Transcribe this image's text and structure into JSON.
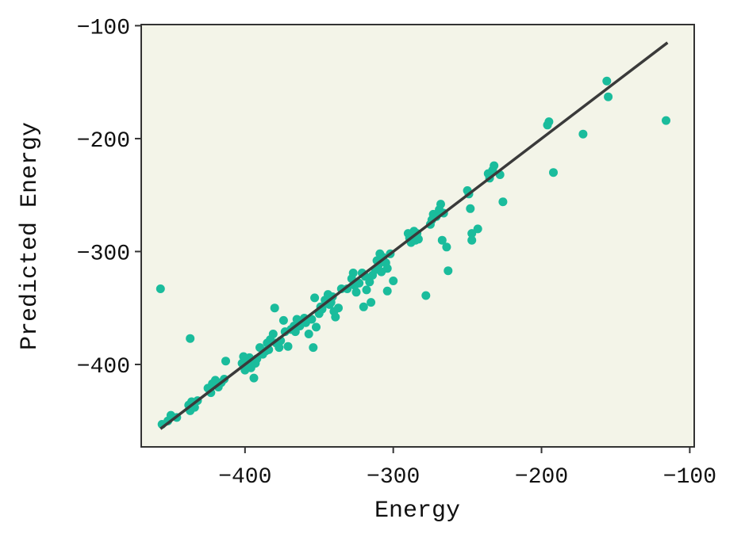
{
  "chart_data": {
    "type": "scatter",
    "title": "",
    "xlabel": "Energy",
    "ylabel": "Predicted Energy",
    "xlim": [
      -470,
      -97
    ],
    "ylim": [
      -473,
      -99
    ],
    "xticks": [
      -400,
      -300,
      -200,
      -100
    ],
    "yticks": [
      -100,
      -200,
      -300,
      -400
    ],
    "xtick_labels": [
      "−400",
      "−300",
      "−200",
      "−100"
    ],
    "ytick_labels": [
      "−100",
      "−200",
      "−300",
      "−400"
    ],
    "grid": false,
    "legend": "none",
    "colors": {
      "plot_background": "#f3f4e8",
      "points": "#1abc9c",
      "line": "#3a3a3a",
      "frame": "#333333"
    },
    "reference_line": {
      "x": [
        -457,
        -115
      ],
      "y": [
        -457,
        -115
      ]
    },
    "series": [
      {
        "points": [
          [
            -457,
            -333
          ],
          [
            -456,
            -453
          ],
          [
            -452,
            -450
          ],
          [
            -450,
            -445
          ],
          [
            -446,
            -447
          ],
          [
            -437,
            -377
          ],
          [
            -438,
            -436
          ],
          [
            -437,
            -441
          ],
          [
            -436,
            -433
          ],
          [
            -434,
            -438
          ],
          [
            -432,
            -432
          ],
          [
            -425,
            -421
          ],
          [
            -423,
            -425
          ],
          [
            -422,
            -417
          ],
          [
            -420,
            -414
          ],
          [
            -418,
            -420
          ],
          [
            -416,
            -416
          ],
          [
            -414,
            -413
          ],
          [
            -413,
            -397
          ],
          [
            -402,
            -399
          ],
          [
            -401,
            -393
          ],
          [
            -400,
            -405
          ],
          [
            -399,
            -396
          ],
          [
            -398,
            -400
          ],
          [
            -397,
            -394
          ],
          [
            -396,
            -403
          ],
          [
            -395,
            -397
          ],
          [
            -394,
            -412
          ],
          [
            -393,
            -399
          ],
          [
            -392,
            -395
          ],
          [
            -390,
            -385
          ],
          [
            -388,
            -391
          ],
          [
            -386,
            -388
          ],
          [
            -385,
            -381
          ],
          [
            -384,
            -387
          ],
          [
            -383,
            -378
          ],
          [
            -381,
            -373
          ],
          [
            -380,
            -350
          ],
          [
            -379,
            -381
          ],
          [
            -377,
            -385
          ],
          [
            -376,
            -379
          ],
          [
            -374,
            -361
          ],
          [
            -373,
            -371
          ],
          [
            -371,
            -384
          ],
          [
            -369,
            -369
          ],
          [
            -367,
            -366
          ],
          [
            -366,
            -371
          ],
          [
            -365,
            -360
          ],
          [
            -363,
            -366
          ],
          [
            -362,
            -363
          ],
          [
            -360,
            -359
          ],
          [
            -359,
            -363
          ],
          [
            -357,
            -373
          ],
          [
            -355,
            -360
          ],
          [
            -354,
            -385
          ],
          [
            -353,
            -341
          ],
          [
            -352,
            -367
          ],
          [
            -350,
            -355
          ],
          [
            -349,
            -349
          ],
          [
            -348,
            -351
          ],
          [
            -346,
            -343
          ],
          [
            -345,
            -346
          ],
          [
            -344,
            -338
          ],
          [
            -343,
            -347
          ],
          [
            -342,
            -345
          ],
          [
            -341,
            -340
          ],
          [
            -340,
            -353
          ],
          [
            -339,
            -358
          ],
          [
            -337,
            -350
          ],
          [
            -335,
            -333
          ],
          [
            -331,
            -333
          ],
          [
            -328,
            -324
          ],
          [
            -327,
            -319
          ],
          [
            -326,
            -330
          ],
          [
            -325,
            -336
          ],
          [
            -323,
            -328
          ],
          [
            -321,
            -319
          ],
          [
            -320,
            -349
          ],
          [
            -319,
            -322
          ],
          [
            -318,
            -334
          ],
          [
            -316,
            -327
          ],
          [
            -315,
            -345
          ],
          [
            -314,
            -321
          ],
          [
            -312,
            -316
          ],
          [
            -311,
            -308
          ],
          [
            -310,
            -312
          ],
          [
            -309,
            -302
          ],
          [
            -308,
            -318
          ],
          [
            -307,
            -305
          ],
          [
            -306,
            -309
          ],
          [
            -305,
            -310
          ],
          [
            -304,
            -315
          ],
          [
            -304,
            -335
          ],
          [
            -302,
            -302
          ],
          [
            -300,
            -326
          ],
          [
            -290,
            -284
          ],
          [
            -289,
            -288
          ],
          [
            -288,
            -292
          ],
          [
            -287,
            -286
          ],
          [
            -286,
            -282
          ],
          [
            -285,
            -290
          ],
          [
            -284,
            -284
          ],
          [
            -283,
            -289
          ],
          [
            -278,
            -339
          ],
          [
            -275,
            -276
          ],
          [
            -274,
            -272
          ],
          [
            -273,
            -267
          ],
          [
            -271,
            -269
          ],
          [
            -269,
            -263
          ],
          [
            -268,
            -258
          ],
          [
            -267,
            -290
          ],
          [
            -266,
            -266
          ],
          [
            -264,
            -296
          ],
          [
            -263,
            -317
          ],
          [
            -250,
            -246
          ],
          [
            -249,
            -249
          ],
          [
            -248,
            -262
          ],
          [
            -247,
            -284
          ],
          [
            -247,
            -290
          ],
          [
            -243,
            -280
          ],
          [
            -236,
            -231
          ],
          [
            -235,
            -235
          ],
          [
            -233,
            -228
          ],
          [
            -232,
            -224
          ],
          [
            -228,
            -232
          ],
          [
            -226,
            -256
          ],
          [
            -196,
            -188
          ],
          [
            -195,
            -185
          ],
          [
            -192,
            -230
          ],
          [
            -172,
            -196
          ],
          [
            -156,
            -149
          ],
          [
            -155,
            -163
          ],
          [
            -116,
            -184
          ]
        ]
      }
    ]
  }
}
